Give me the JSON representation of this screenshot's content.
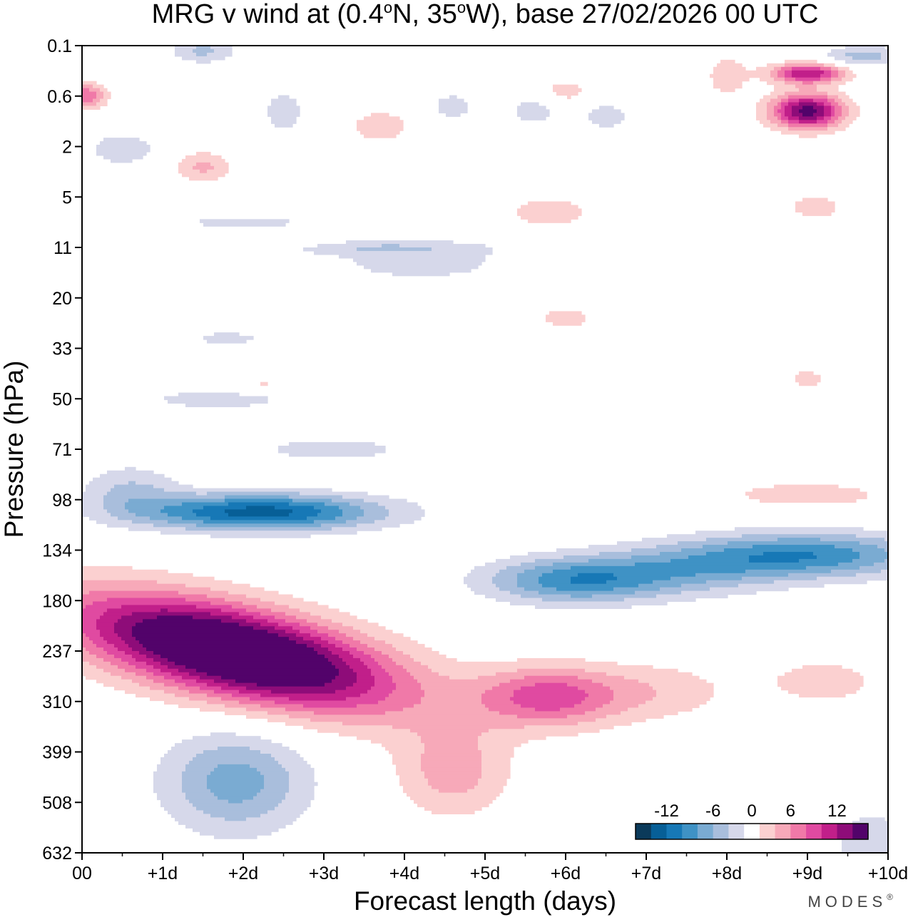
{
  "chart_data": {
    "type": "heatmap",
    "subtype": "filled-contour",
    "title": "MRG v wind at (0.4°N, 35°W),  base 27/02/2026  00 UTC",
    "title_parts": {
      "prefix": "MRG v wind at (0.4",
      "deg1": "o",
      "mid": "N, 35",
      "deg2": "o",
      "suffix": "W),  base 27/02/2026  00 UTC"
    },
    "xlabel": "Forecast length (days)",
    "ylabel": "Pressure (hPa)",
    "xlim": [
      0,
      10
    ],
    "x_ticks": [
      {
        "v": 0,
        "label": "00"
      },
      {
        "v": 1,
        "label": "+1d"
      },
      {
        "v": 2,
        "label": "+2d"
      },
      {
        "v": 3,
        "label": "+3d"
      },
      {
        "v": 4,
        "label": "+4d"
      },
      {
        "v": 5,
        "label": "+5d"
      },
      {
        "v": 6,
        "label": "+6d"
      },
      {
        "v": 7,
        "label": "+7d"
      },
      {
        "v": 8,
        "label": "+8d"
      },
      {
        "v": 9,
        "label": "+9d"
      },
      {
        "v": 10,
        "label": "+10d"
      }
    ],
    "y_levels": [
      "0.1",
      "0.6",
      "2",
      "5",
      "11",
      "20",
      "33",
      "50",
      "71",
      "98",
      "134",
      "180",
      "237",
      "310",
      "399",
      "508",
      "632"
    ],
    "contour_levels": [
      -14,
      -12,
      -10,
      -8,
      -6,
      -4,
      -2,
      2,
      4,
      6,
      8,
      10,
      12,
      14
    ],
    "colorbar": {
      "labels": [
        {
          "v": -12,
          "label": "-12"
        },
        {
          "v": -6,
          "label": "-6"
        },
        {
          "v": 0,
          "label": "0"
        },
        {
          "v": 6,
          "label": "6"
        },
        {
          "v": 12,
          "label": "12"
        }
      ],
      "colors": [
        "#0b3a5a",
        "#075f97",
        "#1778b6",
        "#3f92c5",
        "#7aabd2",
        "#a9bedc",
        "#d6d8ea",
        "#ffffff",
        "#fbd0d0",
        "#f7a9b9",
        "#f079a8",
        "#e04aa1",
        "#c11f8a",
        "#8e0c79",
        "#52036a"
      ]
    },
    "features": [
      {
        "name": "upper tropospheric positive (southerly) maximum",
        "x": [
          0.3,
          3.5
        ],
        "y": [
          9.8,
          12.7
        ],
        "peak": 15
      },
      {
        "name": "negative band near 98 hPa",
        "x": [
          0.6,
          3.8
        ],
        "y": [
          8.6,
          9.5
        ],
        "peak": -11
      },
      {
        "name": "negative band near 134-180 hPa",
        "x": [
          4.5,
          10
        ],
        "y": [
          9.9,
          11.2
        ],
        "peak": -9
      },
      {
        "name": "positive core near 0.6 hPa, day 9",
        "x": [
          8.5,
          9.5
        ],
        "y": [
          0.5,
          1.7
        ],
        "peak": 14
      },
      {
        "name": "negative lower tropospheric blob",
        "x": [
          0.8,
          3.2
        ],
        "y": [
          13.6,
          15.7
        ],
        "peak": -6
      }
    ]
  },
  "brand": {
    "name": "MODES",
    "mark": "®"
  }
}
